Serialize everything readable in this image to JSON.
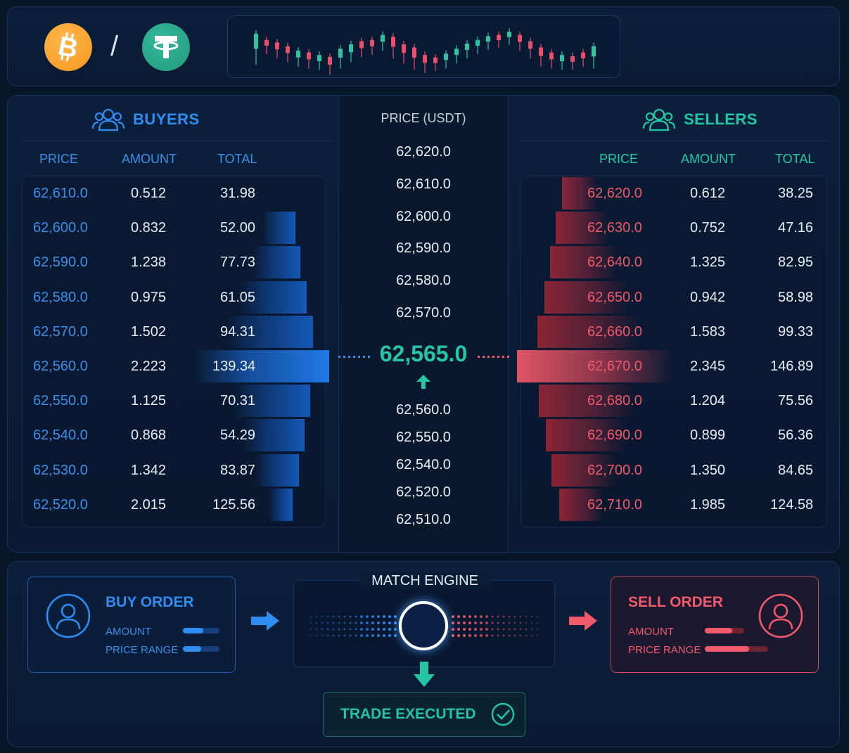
{
  "pair": {
    "base_icon": "bitcoin-icon",
    "quote_icon": "tether-icon",
    "separator": "/"
  },
  "mini_chart": {
    "candles": [
      {
        "dir": "up",
        "body": [
          0.28,
          0.72
        ]
      },
      {
        "dir": "down",
        "body": [
          0.38,
          0.55
        ]
      },
      {
        "dir": "down",
        "body": [
          0.42,
          0.62
        ]
      },
      {
        "dir": "down",
        "body": [
          0.48,
          0.68
        ]
      },
      {
        "dir": "up",
        "body": [
          0.55,
          0.75
        ]
      },
      {
        "dir": "down",
        "body": [
          0.58,
          0.78
        ]
      },
      {
        "dir": "up",
        "body": [
          0.62,
          0.8
        ]
      },
      {
        "dir": "down",
        "body": [
          0.65,
          0.88
        ]
      },
      {
        "dir": "up",
        "body": [
          0.52,
          0.78
        ]
      },
      {
        "dir": "up",
        "body": [
          0.45,
          0.68
        ]
      },
      {
        "dir": "down",
        "body": [
          0.4,
          0.6
        ]
      },
      {
        "dir": "down",
        "body": [
          0.38,
          0.56
        ]
      },
      {
        "dir": "up",
        "body": [
          0.3,
          0.5
        ]
      },
      {
        "dir": "down",
        "body": [
          0.33,
          0.62
        ]
      },
      {
        "dir": "down",
        "body": [
          0.45,
          0.7
        ]
      },
      {
        "dir": "down",
        "body": [
          0.5,
          0.8
        ]
      },
      {
        "dir": "down",
        "body": [
          0.62,
          0.85
        ]
      },
      {
        "dir": "down",
        "body": [
          0.66,
          0.82
        ]
      },
      {
        "dir": "up",
        "body": [
          0.6,
          0.78
        ]
      },
      {
        "dir": "up",
        "body": [
          0.52,
          0.7
        ]
      },
      {
        "dir": "up",
        "body": [
          0.44,
          0.62
        ]
      },
      {
        "dir": "up",
        "body": [
          0.38,
          0.55
        ]
      },
      {
        "dir": "up",
        "body": [
          0.32,
          0.48
        ]
      },
      {
        "dir": "down",
        "body": [
          0.3,
          0.45
        ]
      },
      {
        "dir": "up",
        "body": [
          0.25,
          0.4
        ]
      },
      {
        "dir": "down",
        "body": [
          0.3,
          0.5
        ]
      },
      {
        "dir": "down",
        "body": [
          0.4,
          0.62
        ]
      },
      {
        "dir": "down",
        "body": [
          0.5,
          0.75
        ]
      },
      {
        "dir": "down",
        "body": [
          0.58,
          0.78
        ]
      },
      {
        "dir": "up",
        "body": [
          0.62,
          0.8
        ]
      },
      {
        "dir": "down",
        "body": [
          0.64,
          0.8
        ]
      },
      {
        "dir": "down",
        "body": [
          0.58,
          0.75
        ]
      },
      {
        "dir": "up",
        "body": [
          0.48,
          0.78
        ]
      }
    ]
  },
  "buyers": {
    "title": "BUYERS",
    "icon": "users-icon",
    "headers": [
      "PRICE",
      "AMOUNT",
      "TOTAL"
    ],
    "rows": [
      {
        "price": "62,610.0",
        "amount": "0.512",
        "total": "31.98",
        "depth": 0.0
      },
      {
        "price": "62,600.0",
        "amount": "0.832",
        "total": "52.00",
        "depth": 0.14
      },
      {
        "price": "62,590.0",
        "amount": "1.238",
        "total": "77.73",
        "depth": 0.25
      },
      {
        "price": "62,580.0",
        "amount": "0.975",
        "total": "61.05",
        "depth": 0.4
      },
      {
        "price": "62,570.0",
        "amount": "1.502",
        "total": "94.31",
        "depth": 0.55
      },
      {
        "price": "62,560.0",
        "amount": "2.223",
        "total": "139.34",
        "depth": 0.92,
        "highlight": true
      },
      {
        "price": "62,550.0",
        "amount": "1.125",
        "total": "70.31",
        "depth": 0.48
      },
      {
        "price": "62,540.0",
        "amount": "0.868",
        "total": "54.29",
        "depth": 0.36
      },
      {
        "price": "62,530.0",
        "amount": "1.342",
        "total": "83.87",
        "depth": 0.22
      },
      {
        "price": "62,520.0",
        "amount": "2.015",
        "total": "125.56",
        "depth": 0.08
      }
    ]
  },
  "sellers": {
    "title": "SELLERS",
    "icon": "users-icon",
    "headers": [
      "PRICE",
      "AMOUNT",
      "TOTAL"
    ],
    "rows": [
      {
        "price": "62,620.0",
        "amount": "0.612",
        "total": "38.25",
        "depth": 0.1
      },
      {
        "price": "62,630.0",
        "amount": "0.752",
        "total": "47.16",
        "depth": 0.22
      },
      {
        "price": "62,640.0",
        "amount": "1.325",
        "total": "82.95",
        "depth": 0.32
      },
      {
        "price": "62,650.0",
        "amount": "0.942",
        "total": "58.98",
        "depth": 0.42
      },
      {
        "price": "62,660.0",
        "amount": "1.583",
        "total": "99.33",
        "depth": 0.55
      },
      {
        "price": "62,670.0",
        "amount": "2.345",
        "total": "146.89",
        "depth": 0.92,
        "highlight": true
      },
      {
        "price": "62,680.0",
        "amount": "1.204",
        "total": "75.56",
        "depth": 0.52
      },
      {
        "price": "62,690.0",
        "amount": "0.899",
        "total": "56.36",
        "depth": 0.4
      },
      {
        "price": "62,700.0",
        "amount": "1.350",
        "total": "84.65",
        "depth": 0.3
      },
      {
        "price": "62,710.0",
        "amount": "1.985",
        "total": "124.58",
        "depth": 0.16
      }
    ]
  },
  "price_ladder": {
    "header": "PRICE (USDT)",
    "above": [
      "62,620.0",
      "62,610.0",
      "62,600.0",
      "62,590.0",
      "62,580.0",
      "62,570.0"
    ],
    "mid_price": "62,565.0",
    "mid_direction": "up",
    "below": [
      "62,560.0",
      "62,550.0",
      "62,540.0",
      "62,520.0",
      "62,510.0"
    ]
  },
  "flow": {
    "buy_order": {
      "title": "BUY ORDER",
      "amount_label": "AMOUNT",
      "price_range_label": "PRICE RANGE",
      "amount_fill": 0.55,
      "price_range_fill": 0.5
    },
    "match_engine": {
      "title": "MATCH ENGINE"
    },
    "sell_order": {
      "title": "SELL ORDER",
      "amount_label": "AMOUNT",
      "price_range_label": "PRICE RANGE",
      "amount_fill": 0.7,
      "price_range_fill": 0.7
    },
    "trade_executed": {
      "label": "TRADE EXECUTED"
    }
  },
  "colors": {
    "buy": "#3b8fe8",
    "sell": "#f05a6a",
    "accent": "#24c6a5",
    "background": "#071528"
  }
}
